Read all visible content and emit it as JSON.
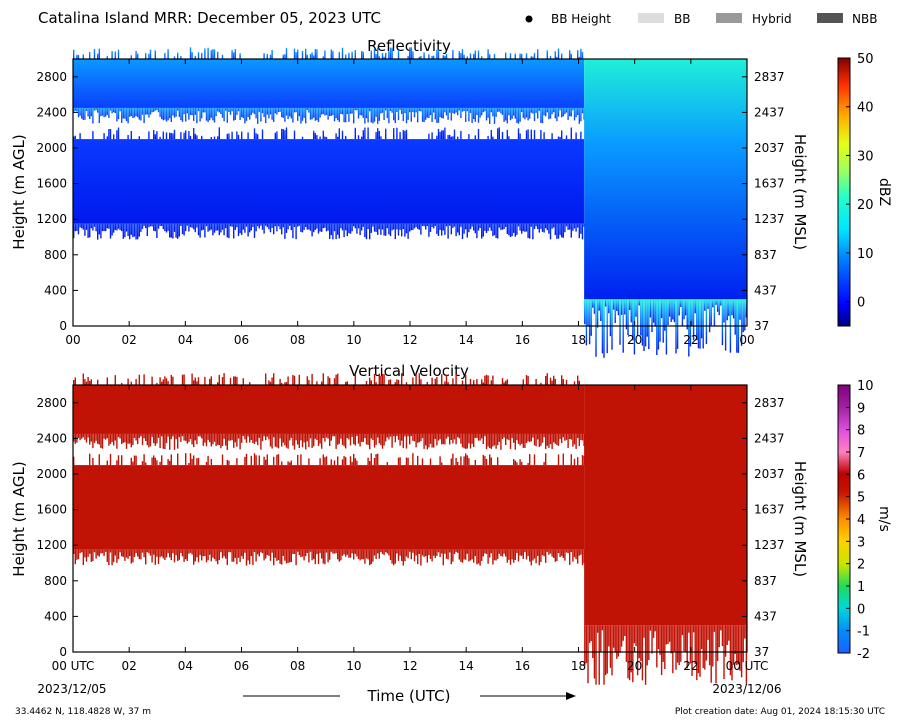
{
  "header": {
    "title": "Catalina Island MRR:  December 05, 2023 UTC",
    "legend": [
      {
        "label": "BB Height",
        "marker": "dot",
        "color": "#000000"
      },
      {
        "label": "BB",
        "marker": "swatch",
        "color": "#dddddd"
      },
      {
        "label": "Hybrid",
        "marker": "swatch",
        "color": "#999999"
      },
      {
        "label": "NBB",
        "marker": "swatch",
        "color": "#555555"
      }
    ]
  },
  "footer": {
    "location": "33.4462 N, 118.4828 W, 37 m",
    "creation": "Plot creation date: Aug 01, 2024 18:15:30 UTC",
    "start_date": "2023/12/05",
    "end_date": "2023/12/06",
    "time_label": "Time (UTC)"
  },
  "chart_data": [
    {
      "type": "heatmap",
      "title": "Reflectivity",
      "xlabel": "",
      "ylabel": "Height (m AGL)",
      "y2label": "Height (m MSL)",
      "xlim": [
        0,
        24
      ],
      "ylim": [
        0,
        3000
      ],
      "x_ticks": [
        "00",
        "02",
        "04",
        "06",
        "08",
        "10",
        "12",
        "14",
        "16",
        "18",
        "20",
        "22",
        "00"
      ],
      "y_ticks": [
        0,
        400,
        800,
        1200,
        1600,
        2000,
        2400,
        2800
      ],
      "y2_ticks": [
        37,
        437,
        837,
        1237,
        1637,
        2037,
        2437,
        2837
      ],
      "colorbar": {
        "label": "dBZ",
        "min": -5,
        "max": 50,
        "ticks": [
          0,
          10,
          20,
          30,
          40,
          50
        ]
      },
      "features": [
        {
          "name": "echo layer",
          "x": [
            0,
            18.2
          ],
          "y": [
            1150,
            2100
          ],
          "value": 0
        },
        {
          "name": "echo layer",
          "x": [
            0,
            18.2
          ],
          "y": [
            2450,
            3000
          ],
          "value": 4
        },
        {
          "name": "echo layer",
          "x": [
            18.2,
            24
          ],
          "y": [
            300,
            3000
          ],
          "value": 8
        }
      ]
    },
    {
      "type": "heatmap",
      "title": "Vertical Velocity",
      "xlabel": "",
      "ylabel": "Height (m AGL)",
      "y2label": "Height (m MSL)",
      "xlim": [
        0,
        24
      ],
      "ylim": [
        0,
        3000
      ],
      "x_ticks": [
        "00 UTC",
        "02",
        "04",
        "06",
        "08",
        "10",
        "12",
        "14",
        "16",
        "18",
        "20",
        "22",
        "00 UTC"
      ],
      "y_ticks": [
        0,
        400,
        800,
        1200,
        1600,
        2000,
        2400,
        2800
      ],
      "y2_ticks": [
        37,
        437,
        837,
        1237,
        1637,
        2037,
        2437,
        2837
      ],
      "colorbar": {
        "label": "m/s",
        "min": -2,
        "max": 10,
        "ticks": [
          -2,
          -1,
          0,
          1,
          2,
          3,
          4,
          5,
          6,
          7,
          8,
          9,
          10
        ]
      },
      "features": [
        {
          "name": "echo layer",
          "x": [
            0,
            18.2
          ],
          "y": [
            1150,
            2100
          ],
          "value": 6
        },
        {
          "name": "echo layer",
          "x": [
            0,
            18.2
          ],
          "y": [
            2450,
            3000
          ],
          "value": 6
        },
        {
          "name": "echo layer",
          "x": [
            18.2,
            24
          ],
          "y": [
            300,
            3000
          ],
          "value": 6
        }
      ]
    }
  ]
}
